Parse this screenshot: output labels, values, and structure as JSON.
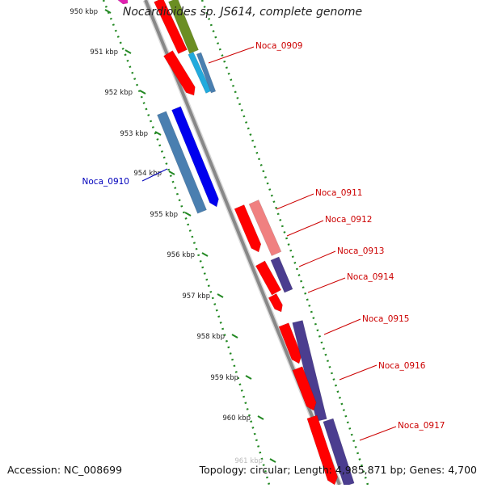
{
  "title": "Nocardioides sp. JS614, complete genome",
  "footer": {
    "accession": "Accession: NC_008699",
    "topology": "Topology: circular; Length: 4,985,871 bp; Genes: 4,700"
  },
  "ticks": [
    {
      "label": "950 kbp"
    },
    {
      "label": "951 kbp"
    },
    {
      "label": "952 kbp"
    },
    {
      "label": "953 kbp"
    },
    {
      "label": "954 kbp"
    },
    {
      "label": "955 kbp"
    },
    {
      "label": "956 kbp"
    },
    {
      "label": "957 kbp"
    },
    {
      "label": "958 kbp"
    },
    {
      "label": "959 kbp"
    },
    {
      "label": "960 kbp"
    },
    {
      "label": "961 kbp"
    }
  ],
  "gene_labels": [
    {
      "name": "Noca_0909",
      "color": "#cc0000"
    },
    {
      "name": "Noca_0910",
      "color": "#0000bb"
    },
    {
      "name": "Noca_0911",
      "color": "#cc0000"
    },
    {
      "name": "Noca_0912",
      "color": "#cc0000"
    },
    {
      "name": "Noca_0913",
      "color": "#cc0000"
    },
    {
      "name": "Noca_0914",
      "color": "#cc0000"
    },
    {
      "name": "Noca_0915",
      "color": "#cc0000"
    },
    {
      "name": "Noca_0916",
      "color": "#cc0000"
    },
    {
      "name": "Noca_0917",
      "color": "#cc0000"
    }
  ],
  "colors": {
    "cds_forward": "#ff0000",
    "cds_reverse": "#0000ee",
    "cog_blue": "#4a7fb0",
    "cog_pink": "#f08080",
    "cog_purple": "#4b3d8f",
    "cog_green": "#6b8e23",
    "cog_cyan": "#22aadd",
    "cog_magenta": "#e020b0",
    "backbone": "#888888",
    "gc_dots": "#228822"
  }
}
